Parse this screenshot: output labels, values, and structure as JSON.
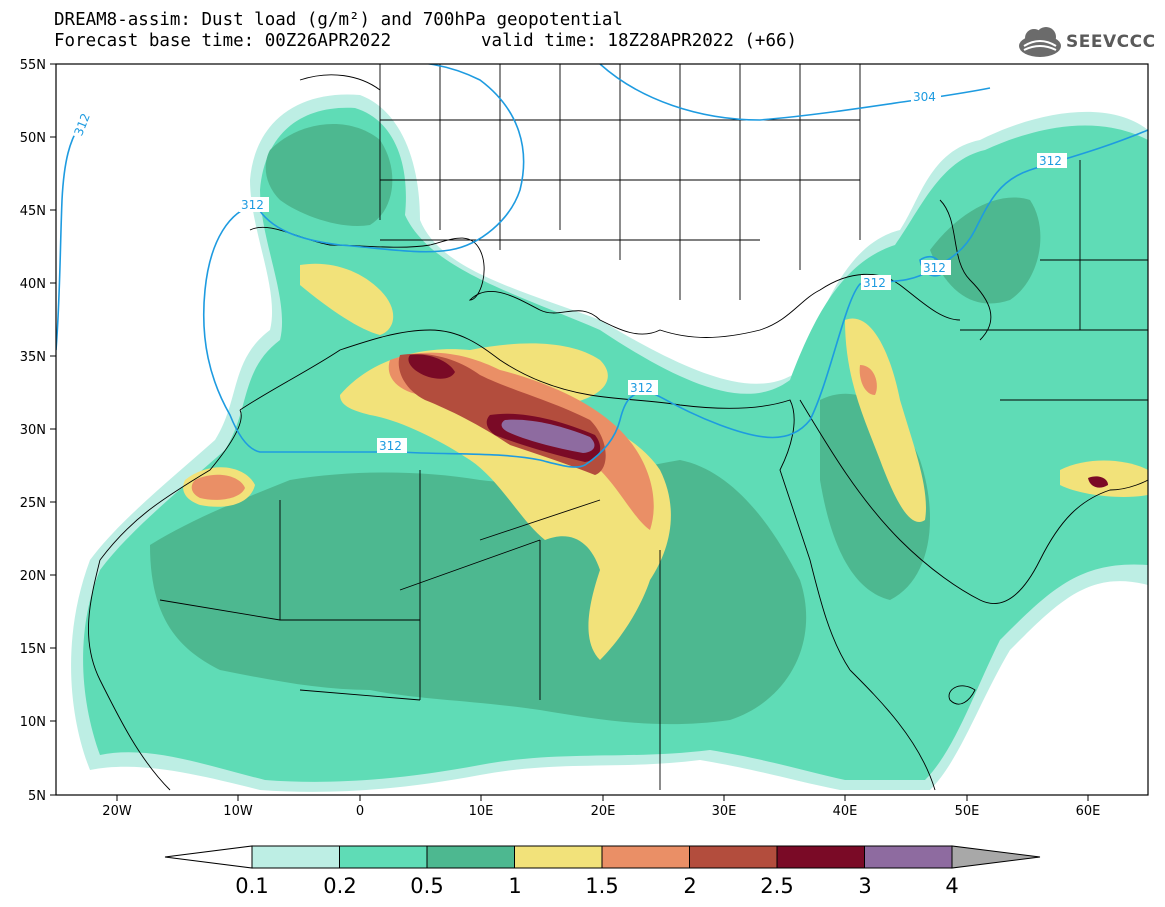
{
  "header": {
    "title_line1": "DREAM8-assim: Dust load (g/m²) and 700hPa geopotential",
    "base_time": "Forecast base time: 00Z26APR2022",
    "valid_time": "valid time: 18Z28APR2022 (+66)",
    "logo_text": "SEEVCCC",
    "logo_icon": "cloud-globe-icon"
  },
  "map": {
    "lat_labels": [
      "55N",
      "50N",
      "45N",
      "40N",
      "35N",
      "30N",
      "25N",
      "20N",
      "15N",
      "10N",
      "5N"
    ],
    "lon_labels": [
      "20W",
      "10W",
      "0",
      "10E",
      "20E",
      "30E",
      "40E",
      "50E",
      "60E"
    ],
    "contour_labels": [
      "312",
      "312",
      "312",
      "312",
      "312",
      "312",
      "312",
      "304"
    ],
    "contour_color": "#1e9be0"
  },
  "colorbar": {
    "labels": [
      "0.1",
      "0.2",
      "0.5",
      "1",
      "1.5",
      "2",
      "2.5",
      "3",
      "4"
    ],
    "colors": [
      "#bdeee4",
      "#5fdcb6",
      "#4db890",
      "#f2e27a",
      "#ea8f66",
      "#b34d3d",
      "#7a0a26",
      "#8e6ba0",
      "#a8a8a8"
    ]
  }
}
